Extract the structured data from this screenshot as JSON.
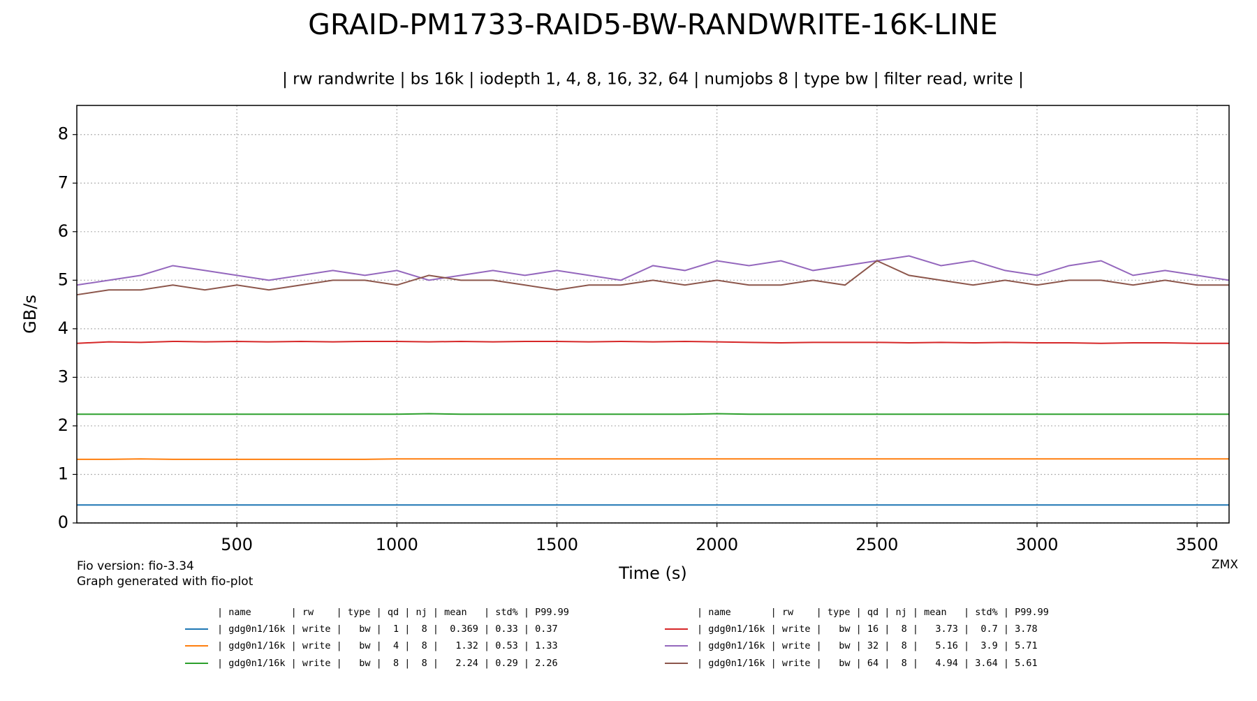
{
  "chart_data": {
    "type": "line",
    "title": "GRAID-PM1733-RAID5-BW-RANDWRITE-16K-LINE",
    "subtitle": "| rw randwrite | bs 16k | iodepth 1, 4, 8, 16, 32, 64 | numjobs 8 | type bw | filter read, write |",
    "x_label": "Time (s)",
    "y_label": "GB/s",
    "footnotes": [
      "Fio version: fio-3.34",
      "Graph generated with fio-plot"
    ],
    "corner_note": "ZMX",
    "legend_header": "| name       | rw    | type | qd | nj | mean   | std% | P99.99",
    "xlim": [
      0,
      3600
    ],
    "xticks": [
      500,
      1000,
      1500,
      2000,
      2500,
      3000,
      3500
    ],
    "ylim": [
      0,
      8.6
    ],
    "yticks": [
      0,
      1,
      2,
      3,
      4,
      5,
      6,
      7,
      8
    ],
    "grid": true,
    "x": [
      0,
      100,
      200,
      300,
      400,
      500,
      600,
      700,
      800,
      900,
      1000,
      1100,
      1200,
      1300,
      1400,
      1500,
      1600,
      1700,
      1800,
      1900,
      2000,
      2100,
      2200,
      2300,
      2400,
      2500,
      2600,
      2700,
      2800,
      2900,
      3000,
      3100,
      3200,
      3300,
      3400,
      3500,
      3600
    ],
    "series": [
      {
        "name": "| gdg0n1/16k | write |   bw |  1 |  8 |  0.369 | 0.33 | 0.37",
        "color": "#1f77b4",
        "values": [
          0.37,
          0.37,
          0.37,
          0.37,
          0.37,
          0.37,
          0.37,
          0.37,
          0.37,
          0.37,
          0.37,
          0.37,
          0.37,
          0.37,
          0.37,
          0.37,
          0.37,
          0.37,
          0.37,
          0.37,
          0.37,
          0.37,
          0.37,
          0.37,
          0.37,
          0.37,
          0.37,
          0.37,
          0.37,
          0.37,
          0.37,
          0.37,
          0.37,
          0.37,
          0.37,
          0.37,
          0.37
        ]
      },
      {
        "name": "| gdg0n1/16k | write |   bw |  4 |  8 |   1.32 | 0.53 | 1.33",
        "color": "#ff7f0e",
        "values": [
          1.31,
          1.31,
          1.32,
          1.31,
          1.31,
          1.31,
          1.31,
          1.31,
          1.31,
          1.31,
          1.32,
          1.32,
          1.32,
          1.32,
          1.32,
          1.32,
          1.32,
          1.32,
          1.32,
          1.32,
          1.32,
          1.32,
          1.32,
          1.32,
          1.32,
          1.32,
          1.32,
          1.32,
          1.32,
          1.32,
          1.32,
          1.32,
          1.32,
          1.32,
          1.32,
          1.32,
          1.32
        ]
      },
      {
        "name": "| gdg0n1/16k | write |   bw |  8 |  8 |   2.24 | 0.29 | 2.26",
        "color": "#2ca02c",
        "values": [
          2.24,
          2.24,
          2.24,
          2.24,
          2.24,
          2.24,
          2.24,
          2.24,
          2.24,
          2.24,
          2.24,
          2.25,
          2.24,
          2.24,
          2.24,
          2.24,
          2.24,
          2.24,
          2.24,
          2.24,
          2.25,
          2.24,
          2.24,
          2.24,
          2.24,
          2.24,
          2.24,
          2.24,
          2.24,
          2.24,
          2.24,
          2.24,
          2.24,
          2.24,
          2.24,
          2.24,
          2.24
        ]
      },
      {
        "name": "| gdg0n1/16k | write |   bw | 16 |  8 |   3.73 |  0.7 | 3.78",
        "color": "#d62728",
        "values": [
          3.7,
          3.73,
          3.72,
          3.74,
          3.73,
          3.74,
          3.73,
          3.74,
          3.73,
          3.74,
          3.74,
          3.73,
          3.74,
          3.73,
          3.74,
          3.74,
          3.73,
          3.74,
          3.73,
          3.74,
          3.73,
          3.72,
          3.71,
          3.72,
          3.72,
          3.72,
          3.71,
          3.72,
          3.71,
          3.72,
          3.71,
          3.71,
          3.7,
          3.71,
          3.71,
          3.7,
          3.7
        ]
      },
      {
        "name": "| gdg0n1/16k | write |   bw | 32 |  8 |   5.16 |  3.9 | 5.71",
        "color": "#9467bd",
        "values": [
          4.9,
          5.0,
          5.1,
          5.3,
          5.2,
          5.1,
          5.0,
          5.1,
          5.2,
          5.1,
          5.2,
          5.0,
          5.1,
          5.2,
          5.1,
          5.2,
          5.1,
          5.0,
          5.3,
          5.2,
          5.4,
          5.3,
          5.4,
          5.2,
          5.3,
          5.4,
          5.5,
          5.3,
          5.4,
          5.2,
          5.1,
          5.3,
          5.4,
          5.1,
          5.2,
          5.1,
          5.0
        ]
      },
      {
        "name": "| gdg0n1/16k | write |   bw | 64 |  8 |   4.94 | 3.64 | 5.61",
        "color": "#8c564b",
        "values": [
          4.7,
          4.8,
          4.8,
          4.9,
          4.8,
          4.9,
          4.8,
          4.9,
          5.0,
          5.0,
          4.9,
          5.1,
          5.0,
          5.0,
          4.9,
          4.8,
          4.9,
          4.9,
          5.0,
          4.9,
          5.0,
          4.9,
          4.9,
          5.0,
          4.9,
          5.4,
          5.1,
          5.0,
          4.9,
          5.0,
          4.9,
          5.0,
          5.0,
          4.9,
          5.0,
          4.9,
          4.9
        ]
      }
    ]
  }
}
